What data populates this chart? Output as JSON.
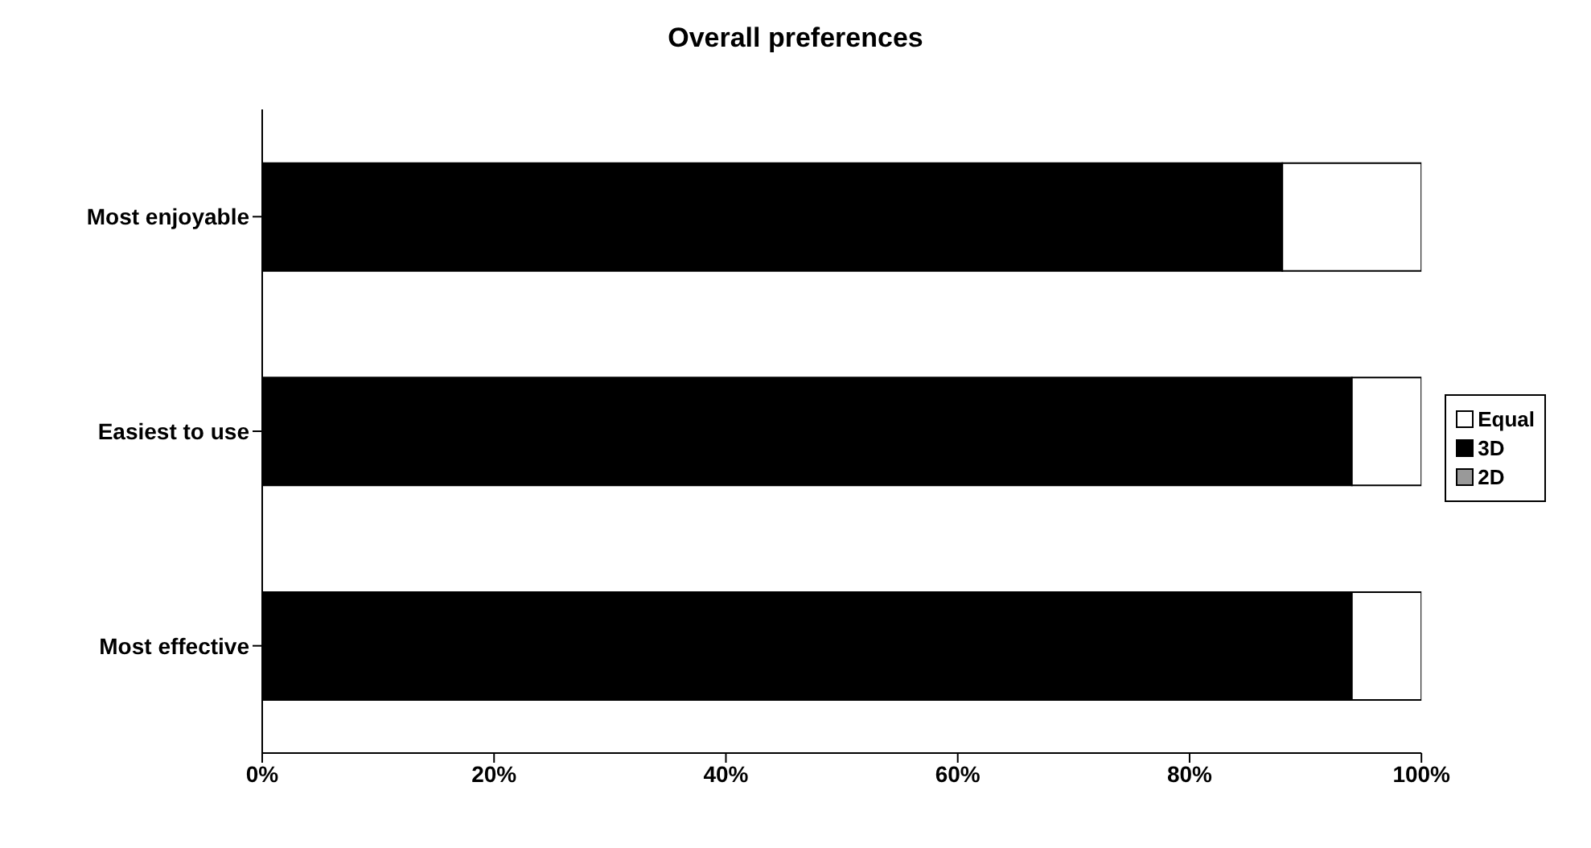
{
  "chart_data": {
    "type": "bar",
    "orientation": "horizontal",
    "stacked": true,
    "title": "Overall preferences",
    "categories": [
      "Most enjoyable",
      "Easiest to use",
      "Most effective"
    ],
    "series": [
      {
        "name": "2D",
        "color": "#999999",
        "values": [
          0,
          0,
          0
        ]
      },
      {
        "name": "3D",
        "color": "#000000",
        "values": [
          88,
          94,
          94
        ]
      },
      {
        "name": "Equal",
        "color": "#ffffff",
        "values": [
          12,
          6,
          6
        ]
      }
    ],
    "xlim": [
      0,
      100
    ],
    "xticks": [
      {
        "value": 0,
        "label": "0%"
      },
      {
        "value": 20,
        "label": "20%"
      },
      {
        "value": 40,
        "label": "40%"
      },
      {
        "value": 60,
        "label": "60%"
      },
      {
        "value": 80,
        "label": "80%"
      },
      {
        "value": 100,
        "label": "100%"
      }
    ],
    "legend": "right",
    "grid": false
  }
}
